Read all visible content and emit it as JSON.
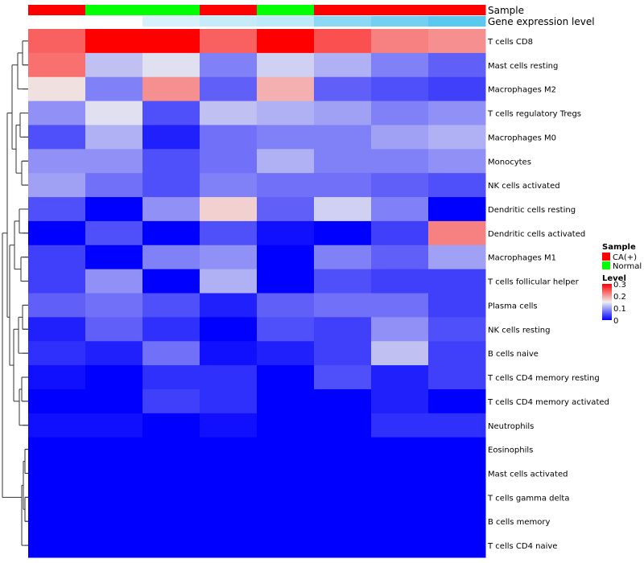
{
  "chart_data": {
    "type": "heatmap",
    "annotation_labels": {
      "sample": "Sample",
      "expression": "Gene expression level"
    },
    "sample_annotation": [
      "CA(+)",
      "Normal",
      "Normal",
      "CA(+)",
      "Normal",
      "CA(+)",
      "CA(+)",
      "CA(+)"
    ],
    "expression_annotation": [
      0.0,
      0.0,
      0.25,
      0.35,
      0.4,
      0.7,
      0.85,
      1.0
    ],
    "rows": [
      "T cells CD8",
      "Mast cells resting",
      "Macrophages M2",
      "T cells regulatory  Tregs",
      "Macrophages M0",
      "Monocytes",
      "NK cells activated",
      "Dendritic cells resting",
      "Dendritic cells activated",
      "Macrophages M1",
      "T cells follicular helper",
      "Plasma cells",
      "NK cells resting",
      "B cells naive",
      "T cells CD4 memory resting",
      "T cells CD4 memory activated",
      "Neutrophils",
      "Eosinophils",
      "Mast cells activated",
      "T cells gamma delta",
      "B cells memory",
      "T cells CD4 naive"
    ],
    "values": [
      [
        0.24,
        0.3,
        0.3,
        0.24,
        0.3,
        0.25,
        0.22,
        0.21
      ],
      [
        0.23,
        0.12,
        0.14,
        0.08,
        0.13,
        0.11,
        0.08,
        0.06
      ],
      [
        0.16,
        0.08,
        0.21,
        0.06,
        0.19,
        0.06,
        0.05,
        0.04
      ],
      [
        0.09,
        0.14,
        0.05,
        0.12,
        0.11,
        0.1,
        0.08,
        0.09
      ],
      [
        0.05,
        0.11,
        0.02,
        0.07,
        0.08,
        0.08,
        0.1,
        0.11
      ],
      [
        0.09,
        0.09,
        0.05,
        0.07,
        0.11,
        0.08,
        0.08,
        0.09
      ],
      [
        0.1,
        0.07,
        0.05,
        0.08,
        0.07,
        0.07,
        0.06,
        0.05
      ],
      [
        0.05,
        0.0,
        0.09,
        0.17,
        0.06,
        0.13,
        0.08,
        0.0
      ],
      [
        0.0,
        0.05,
        0.0,
        0.05,
        0.01,
        0.0,
        0.04,
        0.22
      ],
      [
        0.04,
        0.0,
        0.08,
        0.09,
        0.0,
        0.08,
        0.06,
        0.1
      ],
      [
        0.04,
        0.09,
        0.0,
        0.11,
        0.0,
        0.05,
        0.04,
        0.04
      ],
      [
        0.06,
        0.07,
        0.05,
        0.02,
        0.06,
        0.07,
        0.07,
        0.04
      ],
      [
        0.02,
        0.06,
        0.03,
        0.0,
        0.05,
        0.04,
        0.09,
        0.05
      ],
      [
        0.03,
        0.02,
        0.07,
        0.01,
        0.02,
        0.04,
        0.12,
        0.04
      ],
      [
        0.01,
        0.0,
        0.03,
        0.03,
        0.0,
        0.05,
        0.02,
        0.04
      ],
      [
        0.0,
        0.0,
        0.04,
        0.03,
        0.0,
        0.0,
        0.02,
        0.0
      ],
      [
        0.01,
        0.01,
        0.0,
        0.01,
        0.0,
        0.0,
        0.03,
        0.03
      ],
      [
        0.0,
        0.0,
        0.0,
        0.0,
        0.0,
        0.0,
        0.0,
        0.0
      ],
      [
        0.0,
        0.0,
        0.0,
        0.0,
        0.0,
        0.0,
        0.0,
        0.0
      ],
      [
        0.0,
        0.0,
        0.0,
        0.0,
        0.0,
        0.0,
        0.0,
        0.0
      ],
      [
        0.0,
        0.0,
        0.0,
        0.0,
        0.0,
        0.0,
        0.0,
        0.0
      ],
      [
        0.0,
        0.0,
        0.0,
        0.0,
        0.0,
        0.0,
        0.0,
        0.0
      ]
    ],
    "dendrogram_leaf_order": [
      0,
      1,
      2,
      3,
      4,
      5,
      6,
      7,
      8,
      9,
      10,
      11,
      12,
      13,
      14,
      15,
      16,
      17,
      18,
      19,
      20,
      21
    ],
    "legend": {
      "sample_title": "Sample",
      "sample_entries": [
        {
          "label": "CA(+)",
          "color": "#ff0000"
        },
        {
          "label": "Normal",
          "color": "#00ff00"
        }
      ],
      "level_title": "Level",
      "level_ticks": [
        "0.3",
        "0.2",
        "0.1",
        "0"
      ],
      "level_range": [
        0,
        0.3
      ],
      "placement": "right"
    },
    "color_scale": {
      "low": "#0000ff",
      "mid": "#f0f0f0",
      "high": "#ff0000",
      "mid_value": 0.15
    },
    "expression_color_scale": {
      "low": "#ffffff",
      "high": "#5bc8f0"
    }
  }
}
